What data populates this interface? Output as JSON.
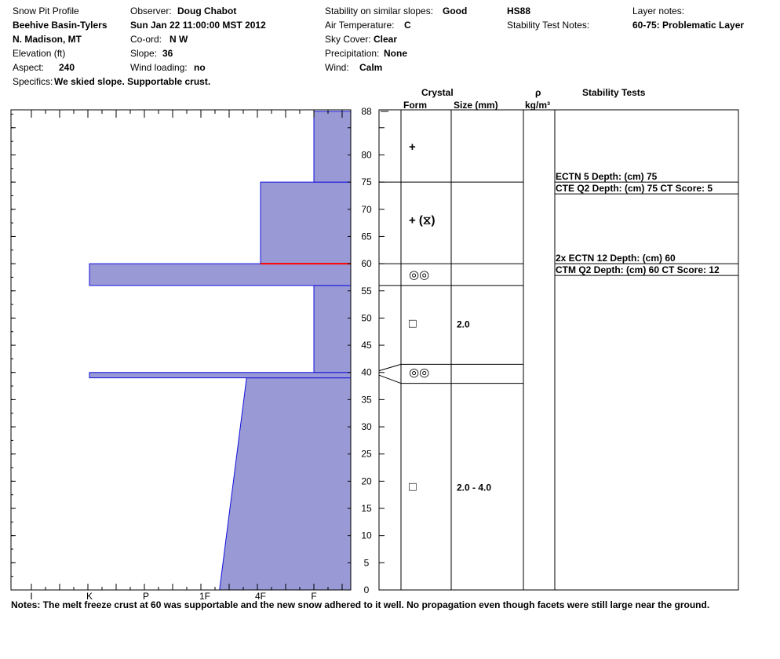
{
  "header": {
    "title": "Snow Pit Profile",
    "location_name": "Beehive Basin-Tylers",
    "region": "N. Madison, MT",
    "elevation_label": "Elevation (ft)",
    "aspect_label": "Aspect:",
    "aspect_value": "240",
    "specifics_label": "Specifics:",
    "specifics_value": "We skied slope. Supportable crust.",
    "observer_label": "Observer:",
    "observer_value": "Doug Chabot",
    "datetime": "Sun Jan 22 11:00:00 MST 2012",
    "coord_label": "Co-ord:",
    "coord_value": "N  W",
    "slope_label": "Slope:",
    "slope_value": "36",
    "wind_loading_label": "Wind loading:",
    "wind_loading_value": "no",
    "stability_label": "Stability on similar slopes:",
    "stability_value": "Good",
    "air_temp_label": "Air Temperature:",
    "air_temp_value": "C",
    "sky_label": "Sky Cover:",
    "sky_value": "Clear",
    "precip_label": "Precipitation:",
    "precip_value": "None",
    "wind_label": "Wind:",
    "wind_value": "Calm",
    "hs": "HS88",
    "stability_test_notes_label": "Stability Test Notes:",
    "layer_notes_label": "Layer notes:",
    "layer_notes_value": "60-75: Problematic Layer"
  },
  "columns": {
    "crystal": "Crystal",
    "form": "Form",
    "size": "Size (mm)",
    "rho": "ρ",
    "rho_unit": "kg/m³",
    "stability_tests": "Stability Tests"
  },
  "notes": "Notes:  The melt freeze crust at 60 was supportable and the new snow adhered to it well. No propagation even though facets were still large near the ground.",
  "chart_data": {
    "type": "area",
    "title": "Snow Pit Profile",
    "y_axis": {
      "label": "",
      "range": [
        0,
        88
      ],
      "ticks": [
        "0",
        "5",
        "10",
        "15",
        "20",
        "25",
        "30",
        "35",
        "40",
        "45",
        "50",
        "55",
        "60",
        "65",
        "70",
        "75",
        "80",
        "88"
      ]
    },
    "x_axis": {
      "label": "",
      "ticks": [
        "I",
        "K",
        "P",
        "1F",
        "4F",
        "F"
      ],
      "note": "hand hardness, plotted from right (F) to left (I)"
    },
    "hardness_scale": [
      "F",
      "4F",
      "1F",
      "P",
      "K",
      "I"
    ],
    "hardness_layers": [
      {
        "bottom": 0,
        "top": 39,
        "hardness_bottom": "1F-",
        "hardness_top": "4F+"
      },
      {
        "bottom": 39,
        "top": 40,
        "hardness": "K"
      },
      {
        "bottom": 40,
        "top": 56,
        "hardness": "F"
      },
      {
        "bottom": 56,
        "top": 60,
        "hardness": "K"
      },
      {
        "bottom": 60,
        "top": 75,
        "hardness": "4F"
      },
      {
        "bottom": 75,
        "top": 88,
        "hardness": "F"
      }
    ],
    "problem_layer_depth": 60,
    "problem_layer_color": "#ff0000",
    "fill_color": "#9999d6",
    "line_color": "#1111dd",
    "layer_boundaries": [
      75,
      60,
      56,
      41.5,
      38
    ],
    "crystals": [
      {
        "depth": 81.5,
        "form": "+",
        "size": ""
      },
      {
        "depth": 68,
        "form": "+ (⧖)",
        "size": ""
      },
      {
        "depth": 58,
        "form": "◎◎",
        "size": ""
      },
      {
        "depth": 49,
        "form": "□",
        "size": "2.0"
      },
      {
        "depth": 40,
        "form": "◎◎",
        "size": ""
      },
      {
        "depth": 19,
        "form": "□",
        "size": "2.0 - 4.0"
      }
    ],
    "stability_tests": [
      {
        "depth": 75,
        "lines": [
          "ECTN 5   Depth: (cm) 75",
          "CTE Q2 Depth: (cm) 75 CT Score: 5"
        ]
      },
      {
        "depth": 60,
        "lines": [
          "2x ECTN 12   Depth: (cm) 60",
          "CTM Q2 Depth: (cm) 60 CT Score: 12"
        ]
      }
    ]
  }
}
